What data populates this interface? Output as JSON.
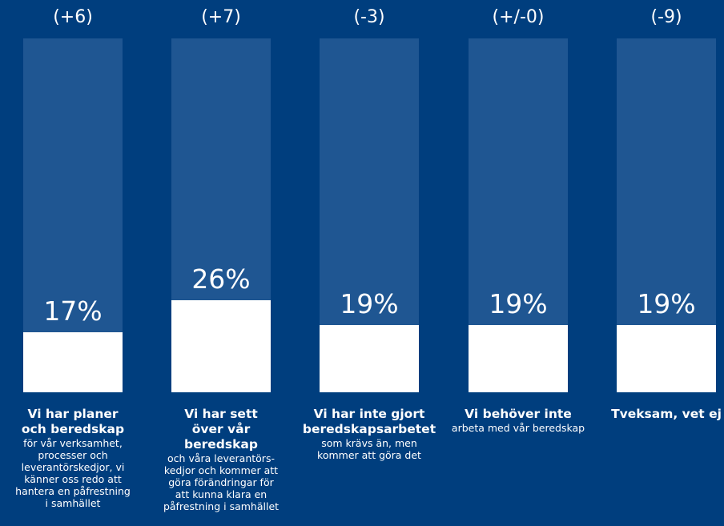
{
  "chart_data": {
    "type": "bar",
    "ylim": [
      0,
      100
    ],
    "categories": [
      "Vi har planer och beredskap",
      "Vi har sett över vår beredskap",
      "Vi har inte gjort beredskapsarbetet",
      "Vi behöver inte",
      "Tveksam, vet ej"
    ],
    "values": [
      17,
      26,
      19,
      19,
      19
    ],
    "value_labels": [
      "17%",
      "26%",
      "19%",
      "19%",
      "19%"
    ],
    "change_labels": [
      "(+6)",
      "(+7)",
      "(-3)",
      "(+/-0)",
      "(-9)"
    ],
    "descriptions": [
      "för vår verksamhet, processer och leverantörskedjor, vi känner oss redo att hantera en påfrestning i samhället",
      "och våra leverantörs-kedjor och kommer att göra förändringar för att kunna klara en påfrestning i samhället",
      "som krävs än, men kommer att göra det",
      "arbeta med vår beredskap",
      ""
    ],
    "grid": false,
    "legend": "none"
  },
  "colors": {
    "background": "#003e7e",
    "bar_track": "#1f5692",
    "bar_fill": "#ffffff",
    "text": "#ffffff"
  }
}
